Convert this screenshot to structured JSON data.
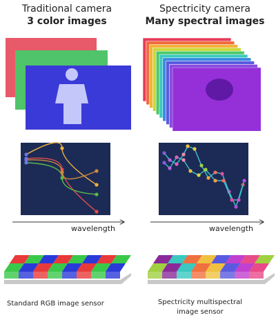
{
  "left": {
    "title": "Traditional camera",
    "subtitle": "3 color images",
    "axis_label": "wavelength",
    "caption": "Standard RGB image sensor"
  },
  "right": {
    "title": "Spectricity camera",
    "subtitle": "Many spectral images",
    "axis_label": "wavelength",
    "caption_lines": [
      "Spectricity multispectral",
      "image sensor"
    ]
  }
}
